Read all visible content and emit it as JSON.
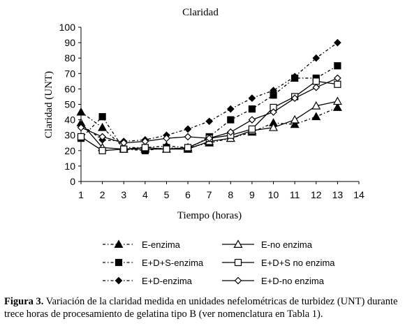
{
  "chart_data": {
    "type": "line",
    "title": "Claridad",
    "xlabel": "Tiempo (horas)",
    "ylabel": "Claridad (UNT)",
    "xlim": [
      1,
      14
    ],
    "ylim": [
      0,
      100
    ],
    "xticks": [
      1,
      2,
      3,
      4,
      5,
      6,
      7,
      8,
      9,
      10,
      11,
      12,
      13,
      14
    ],
    "yticks": [
      0,
      10,
      20,
      30,
      40,
      50,
      60,
      70,
      80,
      90,
      100
    ],
    "grid": false,
    "legend_position": "bottom",
    "x": [
      1,
      2,
      3,
      4,
      5,
      6,
      7,
      8,
      9,
      10,
      11,
      12,
      13
    ],
    "series": [
      {
        "name": "E-enzima",
        "marker": "triangle-filled",
        "line": "dash-dot",
        "values": [
          45,
          35,
          22,
          22,
          23,
          22,
          25,
          28,
          32,
          38,
          37,
          42,
          48
        ]
      },
      {
        "name": "E-no enzima",
        "marker": "triangle-open",
        "line": "solid",
        "values": [
          38,
          22,
          21,
          21,
          21,
          21,
          26,
          28,
          33,
          35,
          40,
          49,
          52
        ]
      },
      {
        "name": "E+D+S-enzima",
        "marker": "square-filled",
        "line": "dash-dot",
        "values": [
          28,
          42,
          21,
          20,
          22,
          21,
          29,
          40,
          47,
          56,
          67,
          67,
          75
        ]
      },
      {
        "name": "E+D+S no enzima",
        "marker": "square-open",
        "line": "solid",
        "values": [
          29,
          20,
          21,
          22,
          21,
          22,
          28,
          30,
          34,
          48,
          55,
          65,
          63
        ]
      },
      {
        "name": "E+D-enzima",
        "marker": "diamond-filled",
        "line": "dash-dot",
        "values": [
          37,
          27,
          26,
          27,
          30,
          34,
          39,
          47,
          54,
          59,
          68,
          80,
          90
        ]
      },
      {
        "name": "E+D-no enzima",
        "marker": "diamond-open",
        "line": "solid",
        "values": [
          35,
          29,
          25,
          26,
          28,
          29,
          28,
          32,
          40,
          45,
          54,
          61,
          67
        ]
      }
    ]
  },
  "caption": {
    "label": "Figura 3.",
    "text": " Variación de la claridad medida en unidades nefelométricas de turbidez (UNT) durante trece horas de procesamiento de gelatina tipo B (ver nomenclatura en Tabla 1)."
  }
}
